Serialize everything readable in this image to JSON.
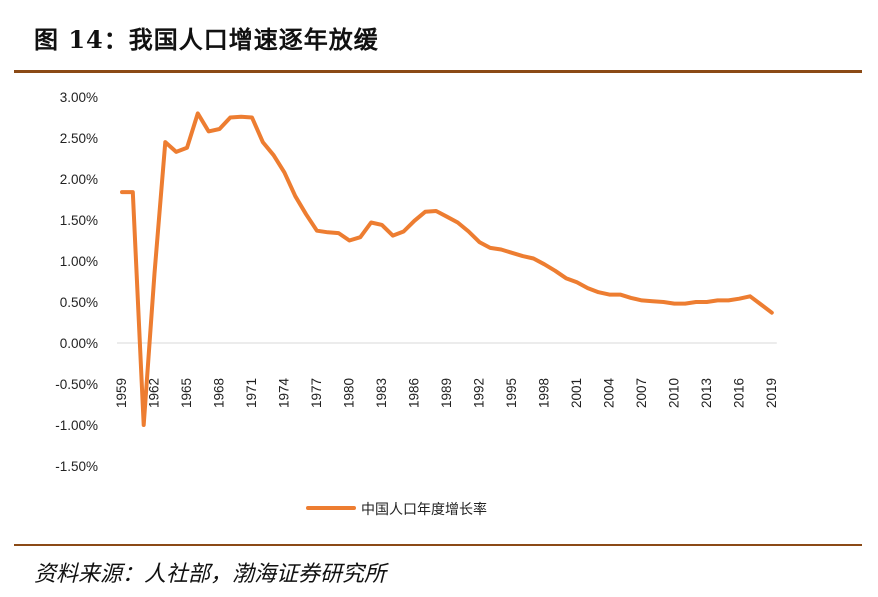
{
  "header": {
    "title": "图 14：我国人口增速逐年放缓"
  },
  "footer": {
    "source": "资料来源：人社部，渤海证券研究所"
  },
  "chart_data": {
    "type": "line",
    "title": "",
    "xlabel": "",
    "ylabel": "",
    "ylim": [
      -1.5,
      3.0
    ],
    "y_ticks": [
      "3.00%",
      "2.50%",
      "2.00%",
      "1.50%",
      "1.00%",
      "0.50%",
      "0.00%",
      "-0.50%",
      "-1.00%",
      "-1.50%"
    ],
    "y_tick_values": [
      3.0,
      2.5,
      2.0,
      1.5,
      1.0,
      0.5,
      0.0,
      -0.5,
      -1.0,
      -1.5
    ],
    "x_tick_labels": [
      "1959",
      "1962",
      "1965",
      "1968",
      "1971",
      "1974",
      "1977",
      "1980",
      "1983",
      "1986",
      "1989",
      "1992",
      "1995",
      "1998",
      "2001",
      "2004",
      "2007",
      "2010",
      "2013",
      "2016",
      "2019"
    ],
    "legend_position": "bottom",
    "color": "#ed7d31",
    "series": [
      {
        "name": "中国人口年度增长率",
        "x": [
          1959,
          1960,
          1961,
          1962,
          1963,
          1964,
          1965,
          1966,
          1967,
          1968,
          1969,
          1970,
          1971,
          1972,
          1973,
          1974,
          1975,
          1976,
          1977,
          1978,
          1979,
          1980,
          1981,
          1982,
          1983,
          1984,
          1985,
          1986,
          1987,
          1988,
          1989,
          1990,
          1991,
          1992,
          1993,
          1994,
          1995,
          1996,
          1997,
          1998,
          1999,
          2000,
          2001,
          2002,
          2003,
          2004,
          2005,
          2006,
          2007,
          2008,
          2009,
          2010,
          2011,
          2012,
          2013,
          2014,
          2015,
          2016,
          2017,
          2018,
          2019
        ],
        "values": [
          1.84,
          1.84,
          -1.0,
          0.85,
          2.45,
          2.33,
          2.38,
          2.8,
          2.58,
          2.61,
          2.75,
          2.76,
          2.75,
          2.45,
          2.29,
          2.08,
          1.79,
          1.57,
          1.37,
          1.35,
          1.34,
          1.25,
          1.29,
          1.47,
          1.44,
          1.31,
          1.36,
          1.49,
          1.6,
          1.61,
          1.54,
          1.47,
          1.36,
          1.23,
          1.16,
          1.14,
          1.1,
          1.06,
          1.03,
          0.96,
          0.88,
          0.79,
          0.74,
          0.67,
          0.62,
          0.59,
          0.59,
          0.55,
          0.52,
          0.51,
          0.5,
          0.48,
          0.48,
          0.5,
          0.5,
          0.52,
          0.52,
          0.54,
          0.57,
          0.47,
          0.37
        ]
      }
    ]
  }
}
